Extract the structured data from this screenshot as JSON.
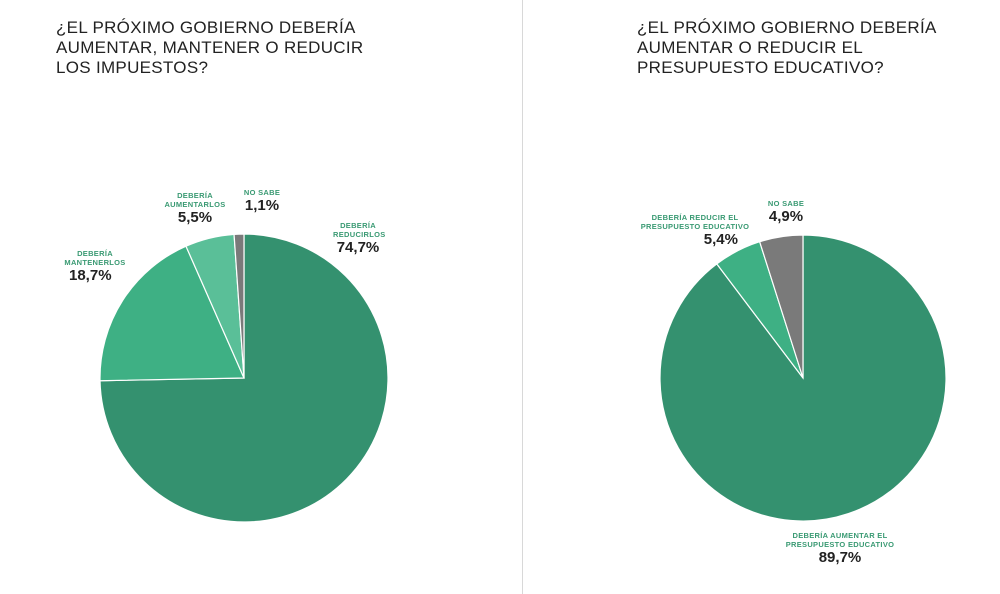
{
  "chart_data": [
    {
      "type": "pie",
      "title": "¿EL PRÓXIMO GOBIERNO DEBERÍA AUMENTAR, MANTENER O REDUCIR LOS IMPUESTOS?",
      "slices": [
        {
          "label": "DEBERÍA REDUCIRLOS",
          "value": 74.7,
          "display": "74,7%",
          "color": "#34916f"
        },
        {
          "label": "DEBERÍA MANTENERLOS",
          "value": 18.7,
          "display": "18,7%",
          "color": "#3eb084"
        },
        {
          "label": "DEBERÍA AUMENTARLOS",
          "value": 5.5,
          "display": "5,5%",
          "color": "#5abf98"
        },
        {
          "label": "NO SABE",
          "value": 1.1,
          "display": "1,1%",
          "color": "#7a7a7a"
        }
      ]
    },
    {
      "type": "pie",
      "title": "¿EL PRÓXIMO GOBIERNO DEBERÍA AUMENTAR O REDUCIR EL PRESUPUESTO EDUCATIVO?",
      "slices": [
        {
          "label": "DEBERÍA AUMENTAR EL PRESUPUESTO EDUCATIVO",
          "value": 89.7,
          "display": "89,7%",
          "color": "#34916f"
        },
        {
          "label": "DEBERÍA REDUCIR EL PRESUPUESTO EDUCATIVO",
          "value": 5.4,
          "display": "5,4%",
          "color": "#3eb084"
        },
        {
          "label": "NO SABE",
          "value": 4.9,
          "display": "4,9%",
          "color": "#7a7a7a"
        }
      ]
    }
  ]
}
